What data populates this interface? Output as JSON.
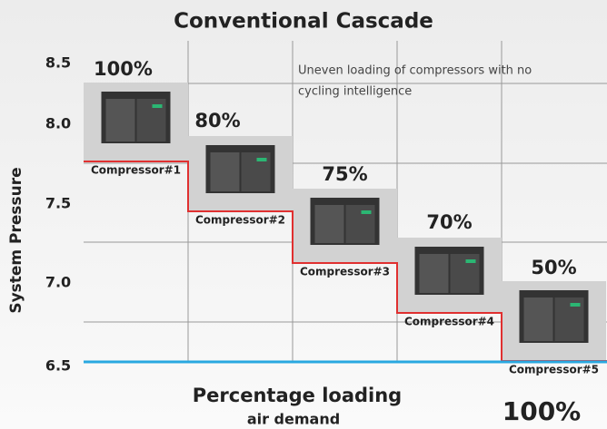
{
  "title": "Conventional Cascade",
  "y_axis": {
    "title": "System Pressure",
    "ticks": [
      "8.5",
      "8.0",
      "7.5",
      "7.0",
      "6.5"
    ]
  },
  "annotation": [
    "Uneven loading of compressors with no",
    "cycling intelligence"
  ],
  "compressors": [
    {
      "name": "Compressor#1",
      "loading": "100%"
    },
    {
      "name": "Compressor#2",
      "loading": "80%"
    },
    {
      "name": "Compressor#3",
      "loading": "75%"
    },
    {
      "name": "Compressor#4",
      "loading": "70%"
    },
    {
      "name": "Compressor#5",
      "loading": "50%"
    }
  ],
  "x_axis": {
    "title": "Percentage loading",
    "subtitle": "air demand",
    "total": "100%"
  }
}
